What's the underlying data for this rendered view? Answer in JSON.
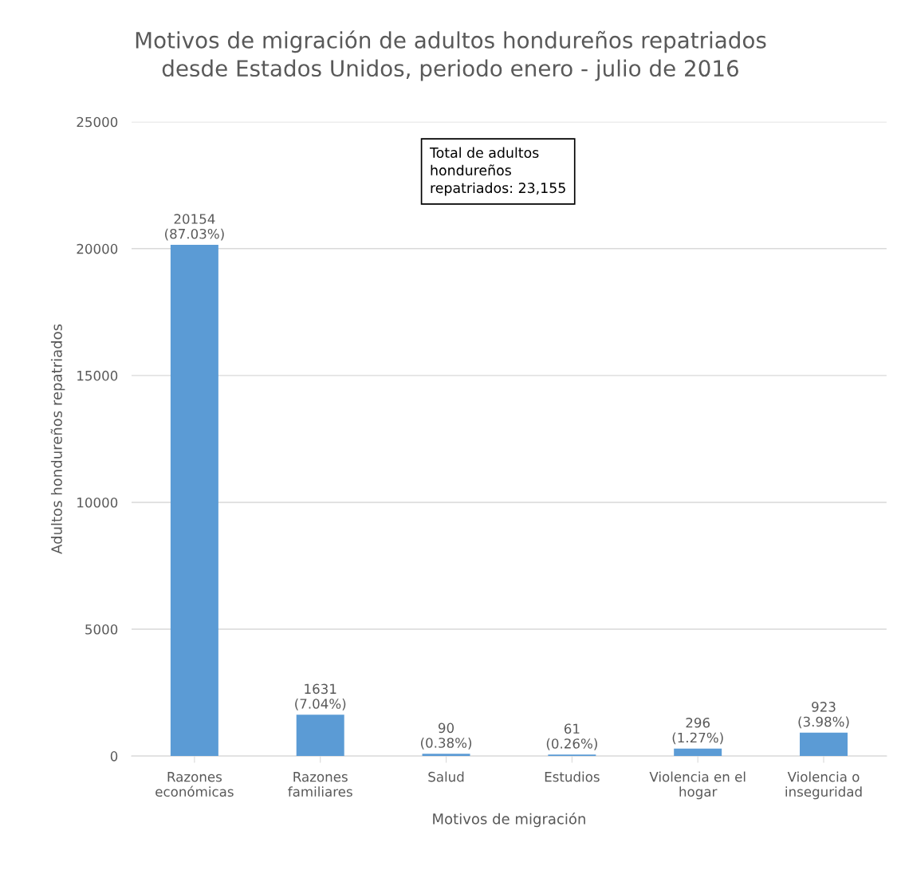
{
  "chart_data": {
    "type": "bar",
    "title": "Motivos de migración de adultos hondureños repatriados\ndesde Estados Unidos, periodo enero - julio de 2016",
    "xlabel": "Motivos de migración",
    "ylabel": "Adultos hondureños repatriados",
    "categories": [
      "Razones\neconómicas",
      "Razones\nfamiliares",
      "Salud",
      "Estudios",
      "Violencia en el\nhogar",
      "Violencia o\ninseguridad"
    ],
    "values": [
      20154,
      1631,
      90,
      61,
      296,
      923
    ],
    "value_labels": [
      "20154\n(87.03%)",
      "1631\n(7.04%)",
      "90\n(0.38%)",
      "61\n(0.26%)",
      "296\n(1.27%)",
      "923\n(3.98%)"
    ],
    "color": "#5b9bd5",
    "ylim": [
      0,
      25000
    ],
    "yticks": [
      0,
      5000,
      10000,
      15000,
      20000,
      25000
    ],
    "grid": "y",
    "legend": false,
    "annotations": [
      "Total de adultos\nhondureños\nrepatriados: 23,155"
    ]
  }
}
